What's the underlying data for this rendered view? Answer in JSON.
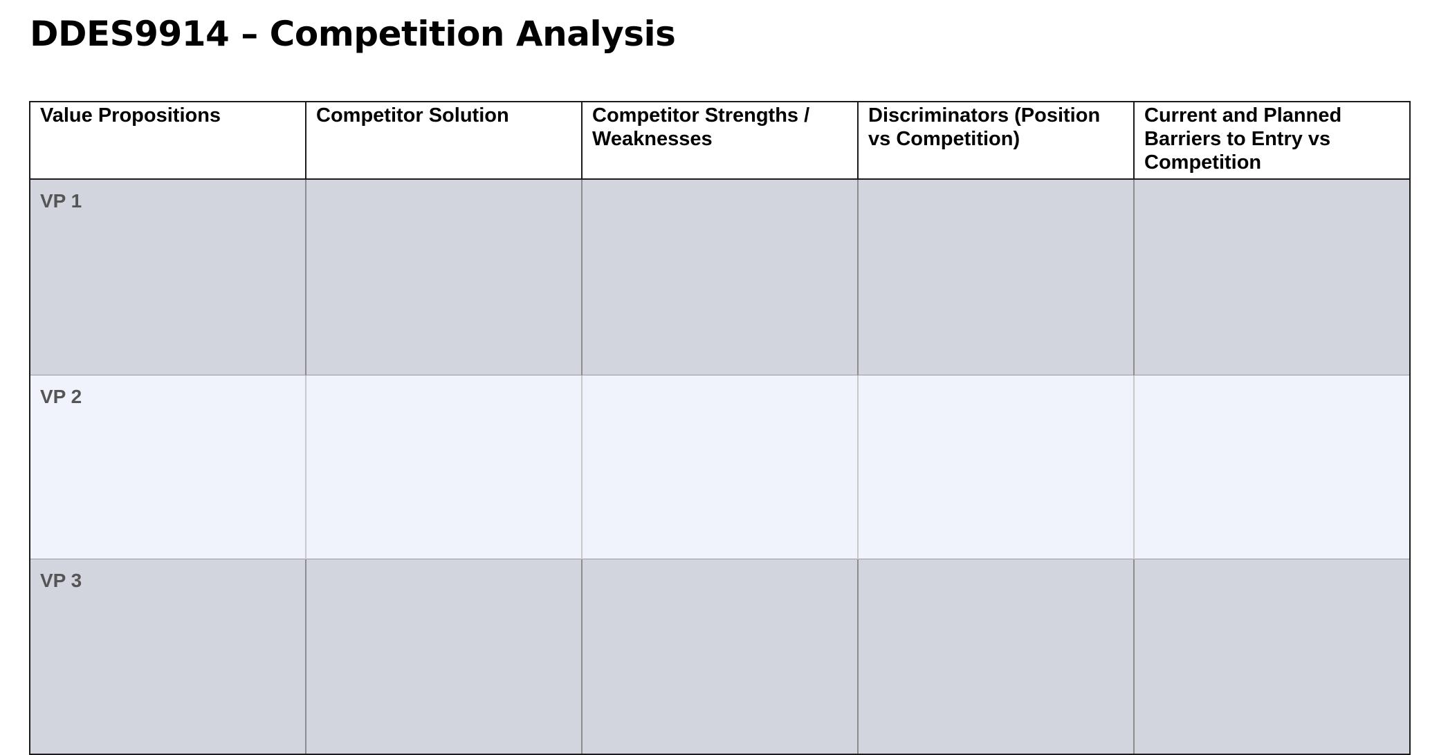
{
  "title": "DDES9914 – Competition Analysis",
  "table": {
    "headers": [
      "Value Propositions",
      "Competitor Solution",
      "Competitor Strengths / Weaknesses",
      "Discriminators (Position vs Competition)",
      "Current and Planned Barriers to Entry vs Competition"
    ],
    "rows": [
      {
        "label": "VP 1",
        "shade": "#d2d4de"
      },
      {
        "label": "VP 2",
        "shade": "#f0f2fc"
      },
      {
        "label": "VP 3",
        "shade": "#d2d4de"
      }
    ]
  }
}
